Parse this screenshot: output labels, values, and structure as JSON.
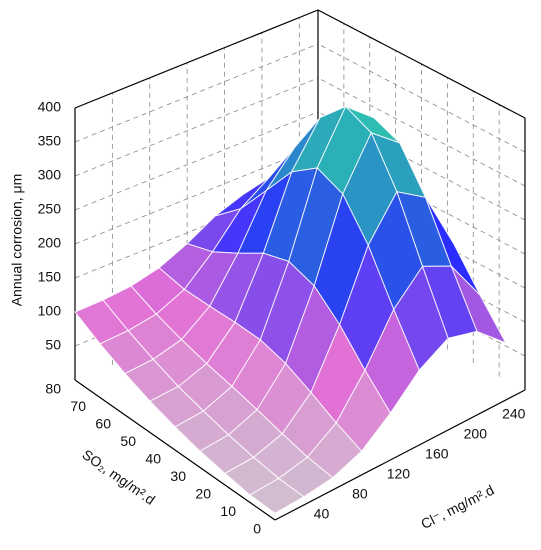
{
  "chart_data": {
    "type": "surface",
    "xlabel": "Cl⁻, mg/m².d",
    "ylabel": "SO₂, mg/m².d",
    "zlabel": "Annual corrosion, μm",
    "x": [
      0,
      30,
      60,
      90,
      120,
      150,
      180,
      210,
      240
    ],
    "y": [
      0,
      10,
      20,
      30,
      40,
      50,
      60,
      70,
      80
    ],
    "z": [
      [
        10,
        12,
        18,
        35,
        69,
        110,
        135,
        123,
        84
      ],
      [
        11,
        14,
        24,
        53,
        109,
        177,
        219,
        198,
        134
      ],
      [
        17,
        20,
        34,
        74,
        153,
        249,
        307,
        278,
        188
      ],
      [
        24,
        28,
        45,
        93,
        187,
        302,
        372,
        337,
        229
      ],
      [
        34,
        38,
        55,
        104,
        200,
        318,
        389,
        353,
        243
      ],
      [
        46,
        49,
        64,
        106,
        189,
        290,
        351,
        320,
        226
      ],
      [
        61,
        64,
        75,
        106,
        166,
        240,
        285,
        263,
        193
      ],
      [
        79,
        81,
        88,
        107,
        145,
        191,
        219,
        205,
        162
      ],
      [
        100,
        101,
        105,
        115,
        134,
        158,
        173,
        166,
        143
      ]
    ],
    "xlim": [
      0,
      260
    ],
    "ylim": [
      0,
      80
    ],
    "zlim": [
      0,
      400
    ],
    "xticks": [
      40,
      80,
      120,
      160,
      200,
      240
    ],
    "yticks": [
      0,
      10,
      20,
      30,
      40,
      50,
      60,
      70,
      80
    ],
    "zticks": [
      50,
      100,
      150,
      200,
      250,
      300,
      350,
      400
    ],
    "colormap": [
      "#cfc6cf",
      "#e36fd6",
      "#2a2cff",
      "#2a8fc6",
      "#2fd9a6"
    ],
    "grid": true
  }
}
